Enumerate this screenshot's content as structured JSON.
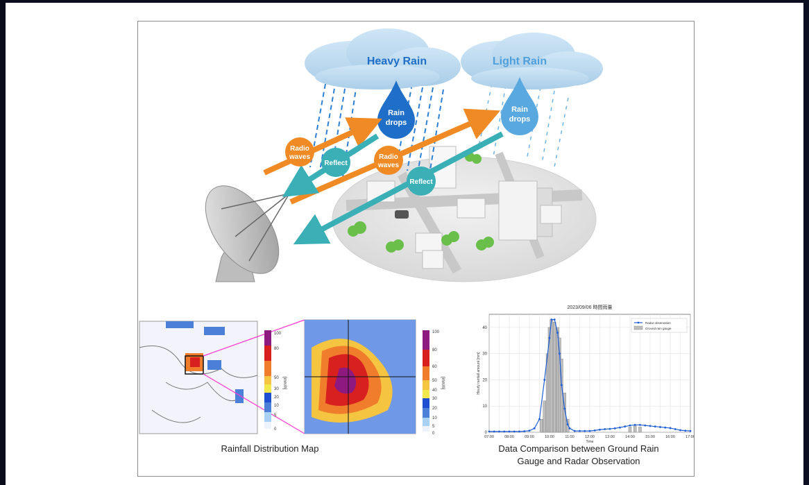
{
  "illustration": {
    "cloud_heavy_label": "Heavy Rain",
    "cloud_light_label": "Light Rain",
    "raindrop_label_line1": "Rain",
    "raindrop_label_line2": "drops",
    "radio_label_line1": "Radio",
    "radio_label_line2": "waves",
    "reflect_label": "Reflect",
    "colors": {
      "heavy_blue": "#1f6fc8",
      "light_blue": "#4f9fdc",
      "orange": "#f08a24",
      "teal": "#3ab0b6"
    }
  },
  "map": {
    "caption": "Rainfall Distribution Map",
    "colorbar_ticks_left": [
      "100",
      "80",
      "50",
      "30",
      "20",
      "10",
      "5",
      "0"
    ],
    "colorbar_unit": "[mm/h]",
    "colorbar_ticks_right": [
      "100",
      "80",
      "60",
      "50",
      "40",
      "30",
      "20",
      "10",
      "5",
      "0"
    ]
  },
  "comparison": {
    "caption_line1": "Data Comparison between Ground Rain",
    "caption_line2": "Gauge and Radar Observation"
  },
  "chart_data": {
    "type": "bar",
    "title": "2023/09/06 時間雨量",
    "xlabel": "Time",
    "ylabel": "Hourly rainfall amount [mm]",
    "x_ticks": [
      "07:00",
      "08:00",
      "09:00",
      "10:00",
      "11:00",
      "12:00",
      "13:00",
      "14:00",
      "15:00",
      "16:00",
      "17:00"
    ],
    "y_ticks": [
      0,
      10,
      20,
      30,
      40
    ],
    "ylim": [
      0,
      45
    ],
    "grid": true,
    "legend_position": "top-right",
    "series": [
      {
        "name": "Radar observation",
        "type": "line",
        "x": [
          7.0,
          7.25,
          7.5,
          7.75,
          8.0,
          8.25,
          8.5,
          8.75,
          9.0,
          9.25,
          9.5,
          9.75,
          10.0,
          10.1,
          10.25,
          10.4,
          10.5,
          10.6,
          10.75,
          10.9,
          11.0,
          11.25,
          11.5,
          11.75,
          12.0,
          12.25,
          12.5,
          12.75,
          13.0,
          13.25,
          13.5,
          13.75,
          14.0,
          14.25,
          14.5,
          14.75,
          15.0,
          15.25,
          15.5,
          15.75,
          16.0,
          16.25,
          16.5,
          16.75,
          17.0
        ],
        "values": [
          0.3,
          0.3,
          0.3,
          0.3,
          0.3,
          0.3,
          0.3,
          0.4,
          0.6,
          1.5,
          5,
          20,
          36,
          43,
          43,
          38,
          30,
          18,
          9,
          3,
          1.5,
          0.5,
          0.5,
          0.5,
          0.5,
          0.7,
          1,
          1.2,
          1.3,
          1.5,
          1.8,
          2.2,
          2.6,
          2.8,
          2.8,
          2.6,
          2.4,
          2.2,
          2,
          1.8,
          1.6,
          1.2,
          0.8,
          0.6,
          0.5
        ]
      },
      {
        "name": "Ground rain gauge",
        "type": "bar",
        "x": [
          9.6,
          9.75,
          9.9,
          10.0,
          10.1,
          10.25,
          10.4,
          10.5,
          10.6,
          10.75,
          10.9,
          14.0,
          14.25,
          14.5
        ],
        "values": [
          5,
          12,
          30,
          40,
          43,
          42,
          40,
          36,
          28,
          15,
          5,
          2,
          2.4,
          2
        ]
      }
    ]
  }
}
